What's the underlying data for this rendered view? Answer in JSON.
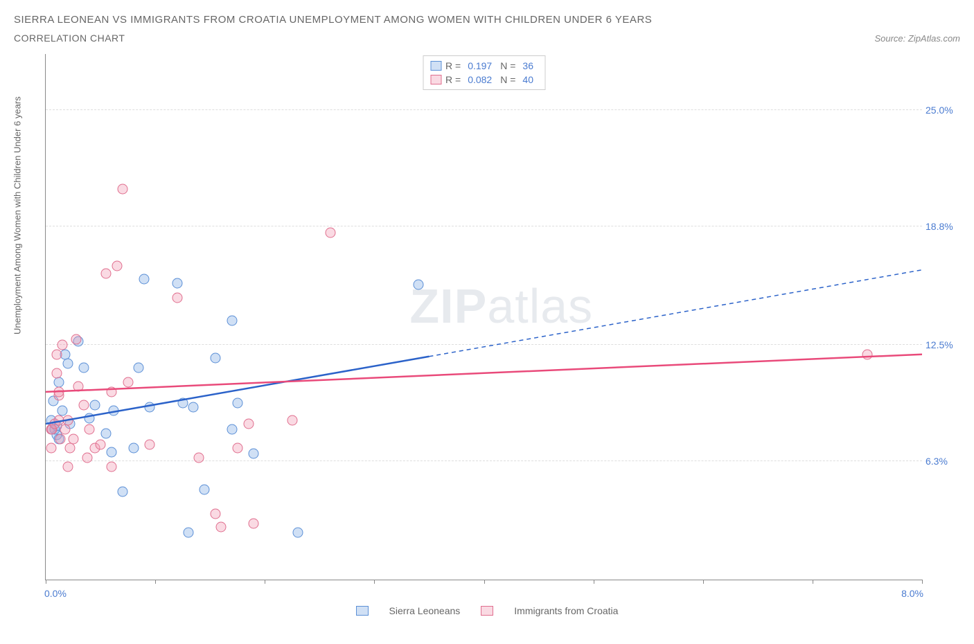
{
  "title_line1": "SIERRA LEONEAN VS IMMIGRANTS FROM CROATIA UNEMPLOYMENT AMONG WOMEN WITH CHILDREN UNDER 6 YEARS",
  "title_line2": "CORRELATION CHART",
  "source_label": "Source: ZipAtlas.com",
  "y_axis_label": "Unemployment Among Women with Children Under 6 years",
  "watermark_zip": "ZIP",
  "watermark_atlas": "atlas",
  "xlim": [
    0,
    8
  ],
  "ylim": [
    0,
    28
  ],
  "x_ticks": [
    0,
    1,
    2,
    3,
    4,
    5,
    6,
    7,
    8
  ],
  "x_start_label": "0.0%",
  "x_end_label": "8.0%",
  "y_grid": [
    {
      "v": 6.3,
      "label": "6.3%"
    },
    {
      "v": 12.5,
      "label": "12.5%"
    },
    {
      "v": 18.8,
      "label": "18.8%"
    },
    {
      "v": 25.0,
      "label": "25.0%"
    }
  ],
  "series": [
    {
      "key": "sl",
      "label": "Sierra Leoneans",
      "fill": "rgba(120,165,225,0.35)",
      "stroke": "#5b8fd6",
      "line_color": "#2b62c9",
      "r_value": "0.197",
      "n_value": "36",
      "trend": {
        "y_at_x0": 8.3,
        "y_at_x8": 16.5,
        "solid_to_x": 3.5
      },
      "points": [
        [
          0.05,
          8.0
        ],
        [
          0.05,
          8.5
        ],
        [
          0.07,
          9.5
        ],
        [
          0.1,
          8.2
        ],
        [
          0.1,
          7.7
        ],
        [
          0.12,
          7.5
        ],
        [
          0.12,
          10.5
        ],
        [
          0.15,
          9.0
        ],
        [
          0.18,
          12.0
        ],
        [
          0.2,
          11.5
        ],
        [
          0.22,
          8.3
        ],
        [
          0.3,
          12.7
        ],
        [
          0.35,
          11.3
        ],
        [
          0.4,
          8.6
        ],
        [
          0.45,
          9.3
        ],
        [
          0.55,
          7.8
        ],
        [
          0.6,
          6.8
        ],
        [
          0.62,
          9.0
        ],
        [
          0.7,
          4.7
        ],
        [
          0.8,
          7.0
        ],
        [
          0.85,
          11.3
        ],
        [
          0.9,
          16.0
        ],
        [
          0.95,
          9.2
        ],
        [
          1.2,
          15.8
        ],
        [
          1.25,
          9.4
        ],
        [
          1.3,
          2.5
        ],
        [
          1.35,
          9.2
        ],
        [
          1.45,
          4.8
        ],
        [
          1.55,
          11.8
        ],
        [
          1.7,
          13.8
        ],
        [
          1.7,
          8.0
        ],
        [
          1.75,
          9.4
        ],
        [
          1.9,
          6.7
        ],
        [
          2.3,
          2.5
        ],
        [
          3.4,
          15.7
        ],
        [
          0.08,
          8.0
        ]
      ]
    },
    {
      "key": "cr",
      "label": "Immigrants from Croatia",
      "fill": "rgba(240,150,175,0.35)",
      "stroke": "#e06e8e",
      "line_color": "#e94a7a",
      "r_value": "0.082",
      "n_value": "40",
      "trend": {
        "y_at_x0": 10.0,
        "y_at_x8": 12.0,
        "solid_to_x": 8.0
      },
      "points": [
        [
          0.05,
          8.0
        ],
        [
          0.05,
          7.0
        ],
        [
          0.06,
          8.0
        ],
        [
          0.08,
          8.3
        ],
        [
          0.1,
          11.0
        ],
        [
          0.1,
          12.0
        ],
        [
          0.12,
          9.8
        ],
        [
          0.12,
          8.5
        ],
        [
          0.12,
          10.0
        ],
        [
          0.13,
          7.5
        ],
        [
          0.15,
          12.5
        ],
        [
          0.18,
          8.0
        ],
        [
          0.2,
          8.5
        ],
        [
          0.2,
          6.0
        ],
        [
          0.22,
          7.0
        ],
        [
          0.25,
          7.5
        ],
        [
          0.28,
          12.8
        ],
        [
          0.3,
          10.3
        ],
        [
          0.35,
          9.3
        ],
        [
          0.38,
          6.5
        ],
        [
          0.4,
          8.0
        ],
        [
          0.45,
          7.0
        ],
        [
          0.5,
          7.2
        ],
        [
          0.55,
          16.3
        ],
        [
          0.6,
          10.0
        ],
        [
          0.6,
          6.0
        ],
        [
          0.65,
          16.7
        ],
        [
          0.7,
          20.8
        ],
        [
          0.75,
          10.5
        ],
        [
          0.95,
          7.2
        ],
        [
          1.2,
          15.0
        ],
        [
          1.4,
          6.5
        ],
        [
          1.55,
          3.5
        ],
        [
          1.6,
          2.8
        ],
        [
          1.75,
          7.0
        ],
        [
          1.85,
          8.3
        ],
        [
          1.9,
          3.0
        ],
        [
          2.25,
          8.5
        ],
        [
          2.6,
          18.5
        ],
        [
          7.5,
          12.0
        ]
      ]
    }
  ],
  "rn_labels": {
    "r": "R =",
    "n": "N ="
  }
}
